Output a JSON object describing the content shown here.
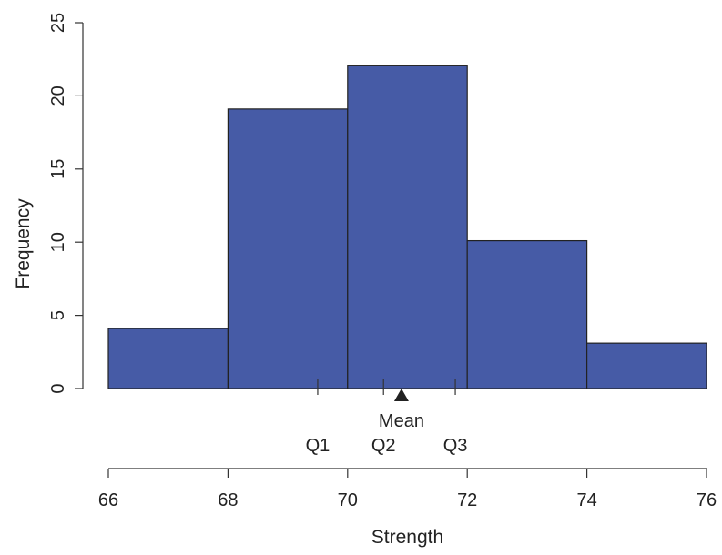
{
  "chart_data": {
    "type": "bar",
    "title": "",
    "xlabel": "Strength",
    "ylabel": "Frequency",
    "bins": [
      {
        "start": 66,
        "end": 68,
        "count": 4.1
      },
      {
        "start": 68,
        "end": 70,
        "count": 19.1
      },
      {
        "start": 70,
        "end": 72,
        "count": 22.1
      },
      {
        "start": 72,
        "end": 74,
        "count": 10.1
      },
      {
        "start": 74,
        "end": 76,
        "count": 3.1
      }
    ],
    "xlim": [
      66,
      76
    ],
    "ylim": [
      0,
      25
    ],
    "xticks": [
      "66",
      "68",
      "70",
      "72",
      "74",
      "76"
    ],
    "yticks": [
      "0",
      "5",
      "10",
      "15",
      "20",
      "25"
    ],
    "bar_color": "#465ba6",
    "markers": {
      "q1": {
        "label": "Q1",
        "value": 69.5
      },
      "q2": {
        "label": "Q2",
        "value": 70.6
      },
      "q3": {
        "label": "Q3",
        "value": 71.8
      },
      "mean": {
        "label": "Mean",
        "value": 70.9
      }
    },
    "grid": false
  }
}
